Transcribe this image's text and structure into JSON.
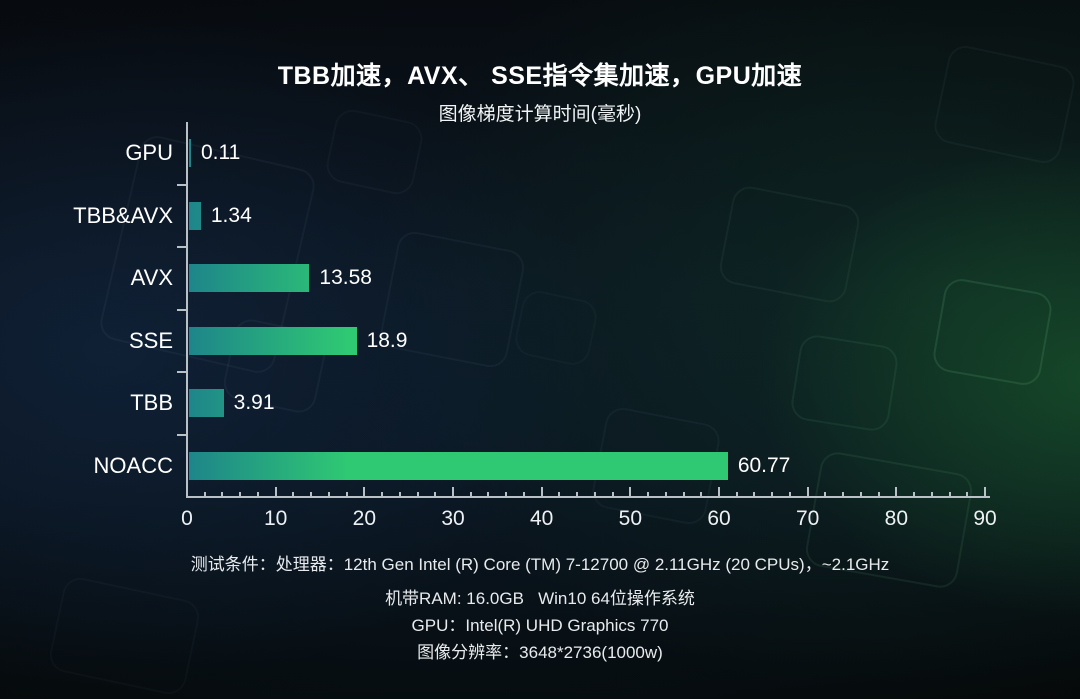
{
  "page": {
    "title": "TBB加速，AVX、 SSE指令集加速，GPU加速",
    "subtitle": "图像梯度计算时间(毫秒)"
  },
  "chart_data": {
    "type": "bar",
    "orientation": "horizontal",
    "title": "TBB加速，AVX、 SSE指令集加速，GPU加速",
    "subtitle": "图像梯度计算时间(毫秒)",
    "categories": [
      "GPU",
      "TBB&AVX",
      "AVX",
      "SSE",
      "TBB",
      "NOACC"
    ],
    "values": [
      0.11,
      1.34,
      13.58,
      18.9,
      3.91,
      60.77
    ],
    "value_labels": [
      "0.11",
      "1.34",
      "13.58",
      "18.9",
      "3.91",
      "60.77"
    ],
    "xlabel": "",
    "ylabel": "",
    "xlim": [
      0,
      90
    ],
    "x_major_ticks": [
      0,
      10,
      20,
      30,
      40,
      50,
      60,
      70,
      80,
      90
    ],
    "x_minor_step": 2,
    "grid": false,
    "legend_position": "none",
    "bar_color_start": "#1E858A",
    "bar_color_end": "#2FC973",
    "axis_color": "#b9c0c6",
    "label_color": "#ffffff"
  },
  "footer": {
    "lines": [
      "测试条件：处理器：12th Gen Intel (R) Core (TM) 7-12700 @ 2.11GHz (20 CPUs)，~2.1GHz",
      "机带RAM: 16.0GB   Win10 64位操作系统",
      "GPU：Intel(R) UHD Graphics 770",
      "图像分辨率：3648*2736(1000w)"
    ]
  }
}
